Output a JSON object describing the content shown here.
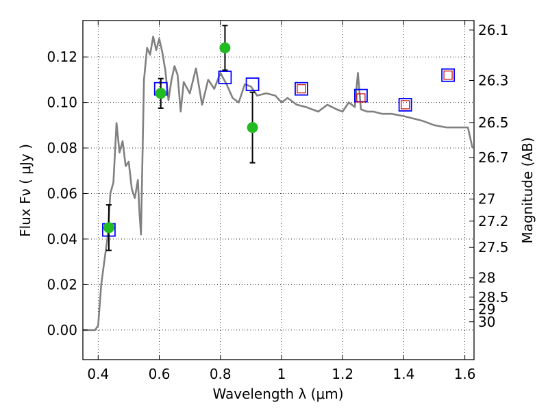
{
  "chart_data": {
    "type": "line",
    "xlabel": "Wavelength  λ (μm)",
    "ylabel": "Flux  Fν  ( μJy )",
    "ylabel_right": "Magnitude (AB)",
    "xlim": [
      0.35,
      1.63
    ],
    "ylim": [
      -0.013,
      0.136
    ],
    "grid": true,
    "x_ticks": [
      0.4,
      0.6,
      0.8,
      1.0,
      1.2,
      1.4,
      1.6
    ],
    "x_tick_labels": [
      "0.4",
      "0.6",
      "0.8",
      "1",
      "1.2",
      "1.4",
      "1.6"
    ],
    "y_ticks": [
      0.0,
      0.02,
      0.04,
      0.06,
      0.08,
      0.1,
      0.12
    ],
    "y_tick_labels": [
      "0.00",
      "0.02",
      "0.04",
      "0.06",
      "0.08",
      "0.10",
      "0.12"
    ],
    "right_ticks": [
      26.1,
      26.3,
      26.5,
      26.7,
      27,
      27.2,
      27.5,
      28,
      28.5,
      29,
      30
    ],
    "right_tick_labels": [
      "26.1",
      "26.3",
      "26.5",
      "26.7",
      "27",
      "27.2",
      "27.5",
      "28",
      "28.5",
      "29",
      "30"
    ],
    "series": [
      {
        "kind": "line",
        "color": "#808080",
        "x": [
          0.35,
          0.39,
          0.4,
          0.41,
          0.42,
          0.43,
          0.44,
          0.45,
          0.46,
          0.47,
          0.48,
          0.49,
          0.5,
          0.51,
          0.52,
          0.53,
          0.535,
          0.54,
          0.55,
          0.56,
          0.57,
          0.58,
          0.59,
          0.6,
          0.61,
          0.62,
          0.63,
          0.64,
          0.65,
          0.66,
          0.67,
          0.68,
          0.7,
          0.72,
          0.74,
          0.76,
          0.78,
          0.8,
          0.82,
          0.84,
          0.86,
          0.88,
          0.9,
          0.92,
          0.95,
          0.98,
          1.0,
          1.02,
          1.05,
          1.08,
          1.1,
          1.12,
          1.15,
          1.18,
          1.2,
          1.22,
          1.24,
          1.25,
          1.26,
          1.28,
          1.3,
          1.33,
          1.36,
          1.4,
          1.43,
          1.46,
          1.5,
          1.54,
          1.58,
          1.61,
          1.625
        ],
        "y": [
          0.0,
          0.0,
          0.002,
          0.02,
          0.03,
          0.04,
          0.06,
          0.065,
          0.091,
          0.078,
          0.083,
          0.072,
          0.074,
          0.062,
          0.058,
          0.066,
          0.052,
          0.042,
          0.11,
          0.124,
          0.121,
          0.129,
          0.123,
          0.128,
          0.122,
          0.114,
          0.101,
          0.11,
          0.116,
          0.112,
          0.096,
          0.109,
          0.104,
          0.115,
          0.099,
          0.11,
          0.106,
          0.113,
          0.108,
          0.102,
          0.1,
          0.108,
          0.107,
          0.103,
          0.104,
          0.103,
          0.1,
          0.102,
          0.099,
          0.098,
          0.097,
          0.096,
          0.099,
          0.097,
          0.096,
          0.1,
          0.098,
          0.113,
          0.097,
          0.096,
          0.096,
          0.095,
          0.095,
          0.094,
          0.093,
          0.092,
          0.09,
          0.089,
          0.089,
          0.089,
          0.08
        ]
      },
      {
        "kind": "squares",
        "color": "#0000ff",
        "x": [
          0.435,
          0.605,
          0.815,
          0.905,
          1.065,
          1.26,
          1.405,
          1.545
        ],
        "y": [
          0.044,
          0.106,
          0.111,
          0.108,
          0.106,
          0.103,
          0.099,
          0.112
        ]
      },
      {
        "kind": "small-squares",
        "color": "#cc0000",
        "x": [
          1.065,
          1.26,
          1.405,
          1.545
        ],
        "y": [
          0.106,
          0.102,
          0.099,
          0.112
        ]
      },
      {
        "kind": "points-errorbars",
        "color": "#22bb22",
        "x": [
          0.435,
          0.605,
          0.815,
          0.905
        ],
        "y": [
          0.045,
          0.104,
          0.124,
          0.089
        ],
        "yerr": [
          0.01,
          0.0065,
          0.0098,
          0.0155
        ]
      }
    ]
  }
}
